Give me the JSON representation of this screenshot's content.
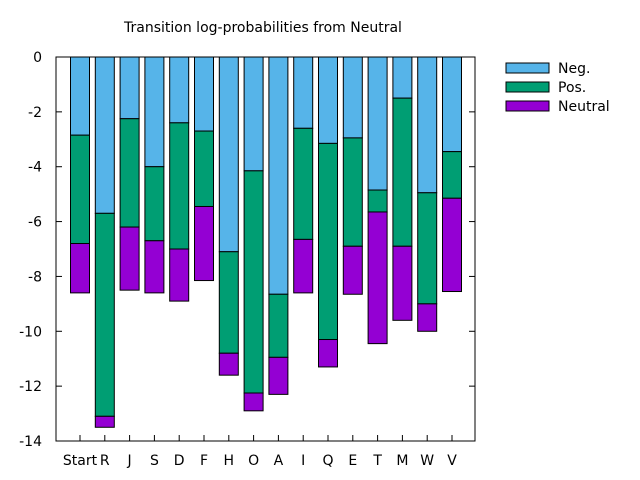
{
  "chart_data": {
    "type": "bar",
    "stacked": true,
    "title": "Transition log-probabilities from Neutral",
    "xlabel": "",
    "ylabel": "",
    "ylim": [
      -14,
      0
    ],
    "yticks": [
      0,
      -2,
      -4,
      -6,
      -8,
      -10,
      -12,
      -14
    ],
    "categories": [
      "Start",
      "R",
      "J",
      "S",
      "D",
      "F",
      "H",
      "O",
      "A",
      "I",
      "Q",
      "E",
      "T",
      "M",
      "W",
      "V"
    ],
    "series": [
      {
        "name": "Neg.",
        "color": "#56b4e9",
        "values": [
          -2.85,
          -5.7,
          -2.25,
          -4.0,
          -2.4,
          -2.7,
          -7.1,
          -4.15,
          -8.65,
          -2.6,
          -3.15,
          -2.95,
          -4.85,
          -1.5,
          -4.95,
          -3.45
        ]
      },
      {
        "name": "Pos.",
        "color": "#009e73",
        "values": [
          -3.95,
          -7.4,
          -3.95,
          -2.7,
          -4.6,
          -2.75,
          -3.7,
          -8.1,
          -2.3,
          -4.05,
          -7.15,
          -3.95,
          -0.8,
          -5.4,
          -4.05,
          -1.7
        ]
      },
      {
        "name": "Neutral",
        "color": "#9400d3",
        "values": [
          -1.8,
          -0.4,
          -2.3,
          -1.9,
          -1.9,
          -2.7,
          -0.8,
          -0.65,
          -1.35,
          -1.95,
          -1.0,
          -1.75,
          -4.8,
          -2.7,
          -1.0,
          -3.4
        ]
      }
    ],
    "legend_position": "top-right",
    "grid": false
  }
}
